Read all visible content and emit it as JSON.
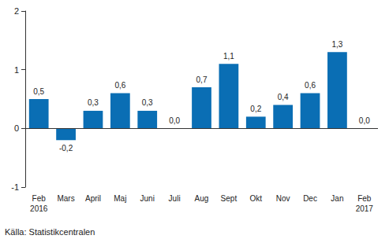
{
  "chart_data": {
    "type": "bar",
    "categories": [
      "Feb\n2016",
      "Mars",
      "April",
      "Maj",
      "Juni",
      "Juli",
      "Aug",
      "Sept",
      "Okt",
      "Nov",
      "Dec",
      "Jan",
      "Feb\n2017"
    ],
    "values": [
      0.5,
      -0.2,
      0.3,
      0.6,
      0.3,
      0.0,
      0.7,
      1.1,
      0.2,
      0.4,
      0.6,
      1.3,
      0.0
    ],
    "value_labels": [
      "0,5",
      "-0,2",
      "0,3",
      "0,6",
      "0,3",
      "0,0",
      "0,7",
      "1,1",
      "0,2",
      "0,4",
      "0,6",
      "1,3",
      "0,0"
    ],
    "data_labels": true,
    "color": "#0a6eb4",
    "ylim": [
      -1,
      2
    ],
    "yticks": [
      -1,
      0,
      1,
      2
    ],
    "grid": false,
    "annotations": [
      "Källa: Statistikcentralen"
    ]
  }
}
